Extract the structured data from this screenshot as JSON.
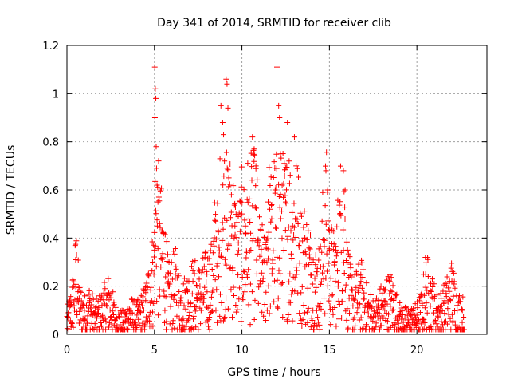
{
  "chart_data": {
    "type": "scatter",
    "title": "Day 341 of 2014, SRMTID for receiver clib",
    "xlabel": "GPS time / hours",
    "ylabel": "SRMTID / TECUs",
    "xlim": [
      0,
      24
    ],
    "ylim": [
      0,
      1.2
    ],
    "xticks": [
      0,
      5,
      10,
      15,
      20
    ],
    "xtick_labels": [
      "0",
      "5",
      "10",
      "15",
      "20"
    ],
    "yticks": [
      0,
      0.2,
      0.4,
      0.6,
      0.8,
      1,
      1.2
    ],
    "ytick_labels": [
      "0",
      "0.2",
      "0.4",
      "0.6",
      "0.8",
      "1",
      "1.2"
    ],
    "grid": true,
    "marker": "+",
    "series_color": "#ff0000",
    "data_range_hours": [
      0,
      22.7
    ],
    "series": [
      {
        "name": "SRMTID",
        "points": [
          [
            0.05,
            0.07
          ],
          [
            0.2,
            0.12
          ],
          [
            0.4,
            0.2
          ],
          [
            0.5,
            0.31
          ],
          [
            0.55,
            0.33
          ],
          [
            0.7,
            0.15
          ],
          [
            1.0,
            0.1
          ],
          [
            1.3,
            0.14
          ],
          [
            1.6,
            0.08
          ],
          [
            2.0,
            0.12
          ],
          [
            2.4,
            0.17
          ],
          [
            2.8,
            0.07
          ],
          [
            3.2,
            0.05
          ],
          [
            3.6,
            0.1
          ],
          [
            4.0,
            0.08
          ],
          [
            4.5,
            0.14
          ],
          [
            4.9,
            0.3
          ],
          [
            5.0,
            0.35
          ],
          [
            5.02,
            1.11
          ],
          [
            5.05,
            1.02
          ],
          [
            5.08,
            0.98
          ],
          [
            5.03,
            0.9
          ],
          [
            5.1,
            0.78
          ],
          [
            5.12,
            0.69
          ],
          [
            5.15,
            0.62
          ],
          [
            5.2,
            0.55
          ],
          [
            5.3,
            0.46
          ],
          [
            5.5,
            0.42
          ],
          [
            5.8,
            0.2
          ],
          [
            6.2,
            0.25
          ],
          [
            6.5,
            0.15
          ],
          [
            6.9,
            0.18
          ],
          [
            7.2,
            0.22
          ],
          [
            7.6,
            0.2
          ],
          [
            8.0,
            0.25
          ],
          [
            8.3,
            0.27
          ],
          [
            8.5,
            0.47
          ],
          [
            8.7,
            0.33
          ],
          [
            8.8,
            0.95
          ],
          [
            8.9,
            0.88
          ],
          [
            8.95,
            0.83
          ],
          [
            9.0,
            0.72
          ],
          [
            9.1,
            1.06
          ],
          [
            9.15,
            1.04
          ],
          [
            9.2,
            0.94
          ],
          [
            9.25,
            0.65
          ],
          [
            9.4,
            0.58
          ],
          [
            9.6,
            0.45
          ],
          [
            9.8,
            0.38
          ],
          [
            10.0,
            0.5
          ],
          [
            10.2,
            0.45
          ],
          [
            10.3,
            0.56
          ],
          [
            10.5,
            0.42
          ],
          [
            10.6,
            0.82
          ],
          [
            10.7,
            0.77
          ],
          [
            10.8,
            0.7
          ],
          [
            10.9,
            0.38
          ],
          [
            11.1,
            0.33
          ],
          [
            11.3,
            0.3
          ],
          [
            11.5,
            0.55
          ],
          [
            11.7,
            0.48
          ],
          [
            11.9,
            0.6
          ],
          [
            12.0,
            1.11
          ],
          [
            12.1,
            0.95
          ],
          [
            12.15,
            0.9
          ],
          [
            12.2,
            0.75
          ],
          [
            12.3,
            0.62
          ],
          [
            12.5,
            0.55
          ],
          [
            12.6,
            0.88
          ],
          [
            12.7,
            0.72
          ],
          [
            12.9,
            0.45
          ],
          [
            13.0,
            0.82
          ],
          [
            13.1,
            0.7
          ],
          [
            13.3,
            0.38
          ],
          [
            13.6,
            0.4
          ],
          [
            14.0,
            0.3
          ],
          [
            14.3,
            0.25
          ],
          [
            14.5,
            0.28
          ],
          [
            14.8,
            0.68
          ],
          [
            14.9,
            0.6
          ],
          [
            15.0,
            0.35
          ],
          [
            15.3,
            0.3
          ],
          [
            15.6,
            0.5
          ],
          [
            15.8,
            0.68
          ],
          [
            15.9,
            0.6
          ],
          [
            16.0,
            0.3
          ],
          [
            16.3,
            0.15
          ],
          [
            16.8,
            0.22
          ],
          [
            17.2,
            0.12
          ],
          [
            17.6,
            0.1
          ],
          [
            18.0,
            0.14
          ],
          [
            18.5,
            0.18
          ],
          [
            19.0,
            0.08
          ],
          [
            19.5,
            0.06
          ],
          [
            20.0,
            0.08
          ],
          [
            20.3,
            0.12
          ],
          [
            20.5,
            0.25
          ],
          [
            20.8,
            0.18
          ],
          [
            21.2,
            0.1
          ],
          [
            21.6,
            0.14
          ],
          [
            22.0,
            0.22
          ],
          [
            22.3,
            0.12
          ],
          [
            22.6,
            0.1
          ]
        ]
      }
    ]
  }
}
